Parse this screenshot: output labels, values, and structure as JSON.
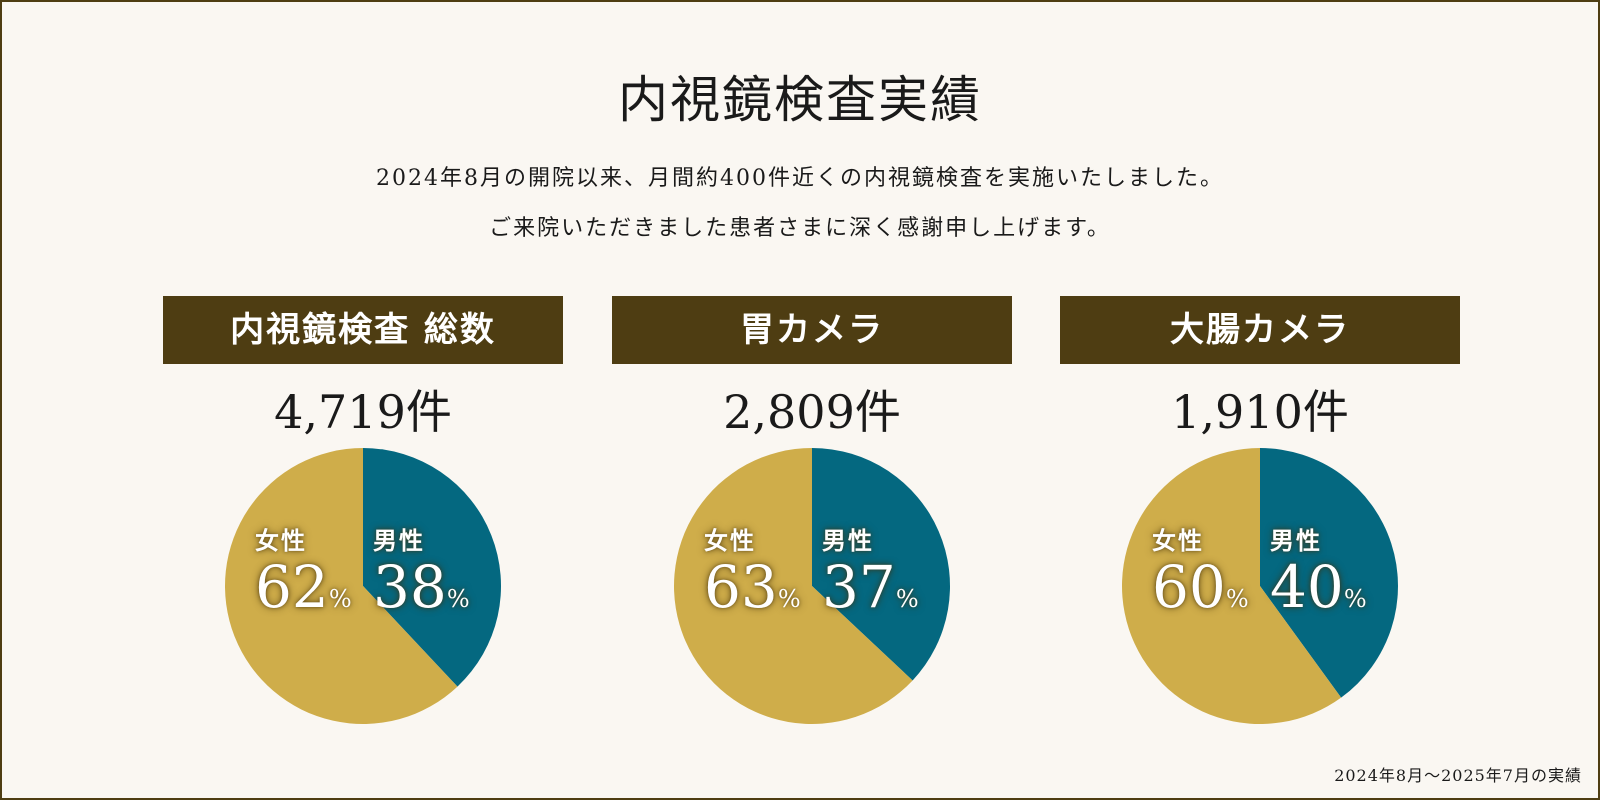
{
  "title": "内視鏡検査実績",
  "intro": [
    "2024年8月の開院以来、月間約400件近くの内視鏡検査を実施いたしました。",
    "ご来院いただきました患者さまに深く感謝申し上げます。"
  ],
  "colors": {
    "male": "#046880",
    "female": "#cfad4a",
    "header_bg": "#4e3d12"
  },
  "chart_data": [
    {
      "type": "pie",
      "title": "内視鏡検査 総数",
      "total_label": "4,719件",
      "total": 4719,
      "unit": "%",
      "slices": [
        {
          "label": "男性",
          "value": 38
        },
        {
          "label": "女性",
          "value": 62
        }
      ]
    },
    {
      "type": "pie",
      "title": "胃カメラ",
      "total_label": "2,809件",
      "total": 2809,
      "unit": "%",
      "slices": [
        {
          "label": "男性",
          "value": 37
        },
        {
          "label": "女性",
          "value": 63
        }
      ]
    },
    {
      "type": "pie",
      "title": "大腸カメラ",
      "total_label": "1,910件",
      "total": 1910,
      "unit": "%",
      "slices": [
        {
          "label": "男性",
          "value": 40
        },
        {
          "label": "女性",
          "value": 60
        }
      ]
    }
  ],
  "footnote": "2024年8月～2025年7月の実績"
}
